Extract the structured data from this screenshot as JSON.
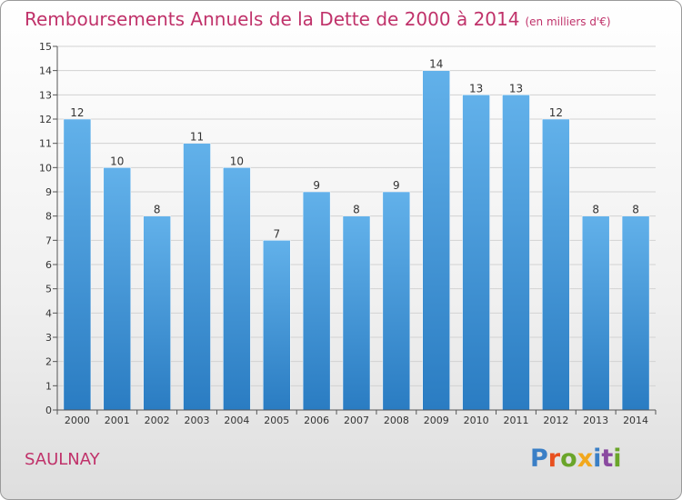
{
  "header": {
    "title": "Remboursements Annuels de la Dette de 2000 à 2014",
    "subtitle": "(en milliers d'€)"
  },
  "footer": {
    "place": "SAULNAY",
    "logo": [
      "P",
      "r",
      "o",
      "x",
      "i",
      "t",
      "i"
    ]
  },
  "colors": {
    "accent": "#c0326a",
    "bar_top": "#62b1ea",
    "bar_bottom": "#2a7cc2",
    "grid": "#d2d2d2"
  },
  "chart_data": {
    "type": "bar",
    "title": "Remboursements Annuels de la Dette de 2000 à 2014",
    "subtitle": "(en milliers d'€)",
    "categories": [
      "2000",
      "2001",
      "2002",
      "2003",
      "2004",
      "2005",
      "2006",
      "2007",
      "2008",
      "2009",
      "2010",
      "2011",
      "2012",
      "2013",
      "2014"
    ],
    "values": [
      12,
      10,
      8,
      11,
      10,
      7,
      9,
      8,
      9,
      14,
      13,
      13,
      12,
      8,
      8
    ],
    "yticks": [
      "0",
      "1",
      "2",
      "3",
      "4",
      "5",
      "6",
      "7",
      "8",
      "9",
      "10",
      "11",
      "12",
      "13",
      "14",
      "15"
    ],
    "ylim": [
      0,
      15
    ],
    "xlabel": "",
    "ylabel": "",
    "grid": true,
    "legend": "none"
  }
}
